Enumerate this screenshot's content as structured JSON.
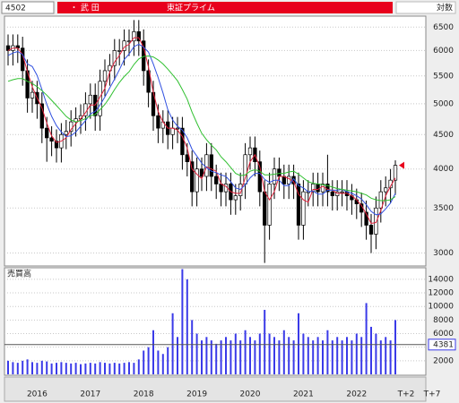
{
  "header": {
    "code": "4502",
    "name": "・ 武 田",
    "market": "東証プライム",
    "scale_mode": "対数"
  },
  "x_extra_labels": [
    "T+2",
    "T+7"
  ],
  "chart_data": [
    {
      "type": "candlestick",
      "log_scale": true,
      "grid": true,
      "up_color": "#ffffff",
      "down_color": "#000000",
      "marker_color": "#e8001c",
      "categories": [
        null,
        null,
        null,
        null,
        null,
        null,
        "2016",
        null,
        null,
        null,
        null,
        null,
        null,
        null,
        null,
        null,
        null,
        "2017",
        null,
        null,
        null,
        null,
        null,
        null,
        null,
        null,
        null,
        null,
        "2018",
        null,
        null,
        null,
        null,
        null,
        null,
        null,
        null,
        null,
        null,
        "2019",
        null,
        null,
        null,
        null,
        null,
        null,
        null,
        null,
        null,
        null,
        "2020",
        null,
        null,
        null,
        null,
        null,
        null,
        null,
        null,
        null,
        null,
        "2021",
        null,
        null,
        null,
        null,
        null,
        null,
        null,
        null,
        null,
        null,
        "2022",
        null,
        null,
        null,
        null,
        null,
        null,
        null,
        null
      ],
      "open": [
        6100,
        6000,
        6100,
        6050,
        5600,
        5100,
        5200,
        5000,
        4600,
        4450,
        4400,
        4300,
        4500,
        4550,
        4700,
        4750,
        4800,
        5000,
        5150,
        4800,
        5400,
        5600,
        5700,
        6000,
        6000,
        6200,
        6200,
        6400,
        6200,
        5600,
        5200,
        4800,
        4600,
        4700,
        4500,
        4600,
        4600,
        4200,
        4100,
        3700,
        4000,
        3900,
        4200,
        3900,
        3800,
        3700,
        3800,
        3600,
        3650,
        3800,
        4200,
        4300,
        4100,
        3700,
        3300,
        3800,
        4000,
        3900,
        3800,
        3900,
        3800,
        3300,
        3700,
        3700,
        3800,
        3700,
        3800,
        3700,
        3650,
        3700,
        3700,
        3650,
        3600,
        3550,
        3450,
        3300,
        3200,
        3500,
        3700,
        3750,
        3850
      ],
      "high": [
        6340,
        6340,
        6340,
        6290,
        5820,
        5410,
        5410,
        5200,
        4780,
        4630,
        4580,
        4680,
        4730,
        4890,
        4940,
        4990,
        5200,
        5360,
        5360,
        5620,
        5820,
        5930,
        6240,
        6240,
        6450,
        6450,
        6660,
        6660,
        6450,
        5820,
        5410,
        4990,
        4890,
        4890,
        4780,
        4780,
        4780,
        4370,
        4260,
        4160,
        4160,
        4370,
        4370,
        4060,
        3950,
        3950,
        3950,
        3800,
        3950,
        4370,
        4470,
        4470,
        4260,
        3850,
        3950,
        4160,
        4160,
        4060,
        4060,
        4060,
        3950,
        3850,
        3850,
        3950,
        3950,
        3950,
        4200,
        3850,
        3850,
        3850,
        3850,
        3800,
        3740,
        3690,
        3590,
        3430,
        3640,
        3850,
        3900,
        4000,
        4120
      ],
      "low": [
        5700,
        5700,
        5750,
        5320,
        4850,
        4850,
        4750,
        4370,
        4100,
        4180,
        4090,
        4090,
        4280,
        4320,
        4470,
        4510,
        4560,
        4750,
        4560,
        4560,
        5130,
        5320,
        5420,
        5700,
        5700,
        5890,
        5890,
        5890,
        5320,
        4940,
        4560,
        4370,
        4370,
        4280,
        4280,
        4370,
        3990,
        3900,
        3520,
        3520,
        3710,
        3710,
        3710,
        3610,
        3520,
        3520,
        3420,
        3420,
        3470,
        3610,
        3990,
        3900,
        3520,
        2900,
        3140,
        3610,
        3710,
        3610,
        3610,
        3610,
        3140,
        3140,
        3520,
        3520,
        3520,
        3520,
        3520,
        3470,
        3470,
        3520,
        3470,
        3420,
        3370,
        3280,
        3140,
        3000,
        3040,
        3330,
        3520,
        3560,
        3660
      ],
      "close": [
        6000,
        6100,
        6050,
        5600,
        5100,
        5200,
        5000,
        4600,
        4450,
        4400,
        4300,
        4500,
        4550,
        4700,
        4750,
        4800,
        5000,
        5150,
        4800,
        5400,
        5600,
        5700,
        6000,
        6000,
        6200,
        6200,
        6400,
        6200,
        5600,
        5200,
        4800,
        4600,
        4700,
        4500,
        4600,
        4600,
        4200,
        4100,
        3700,
        4000,
        3900,
        4200,
        3900,
        3800,
        3700,
        3800,
        3600,
        3650,
        3800,
        4200,
        4300,
        4100,
        3700,
        3300,
        3800,
        4000,
        3900,
        3800,
        3900,
        3800,
        3300,
        3700,
        3700,
        3800,
        3700,
        3800,
        3700,
        3650,
        3700,
        3700,
        3650,
        3600,
        3550,
        3450,
        3300,
        3200,
        3500,
        3700,
        3750,
        3850,
        4050
      ],
      "series": [
        {
          "color": "#e0203a",
          "values": [
            6000,
            6050,
            6050,
            5920,
            5580,
            5300,
            5100,
            4930,
            4680,
            4480,
            4380,
            4400,
            4450,
            4580,
            4670,
            4750,
            4850,
            4980,
            4980,
            5120,
            5270,
            5570,
            5770,
            5900,
            6070,
            6130,
            6270,
            6270,
            6070,
            5670,
            5200,
            4870,
            4700,
            4600,
            4600,
            4570,
            4470,
            4300,
            4000,
            3930,
            3870,
            4030,
            4000,
            3970,
            3800,
            3770,
            3700,
            3680,
            3680,
            3880,
            4100,
            4200,
            4030,
            3700,
            3600,
            3700,
            3900,
            3900,
            3870,
            3830,
            3670,
            3600,
            3570,
            3730,
            3730,
            3770,
            3730,
            3720,
            3680,
            3680,
            3680,
            3650,
            3600,
            3530,
            3430,
            3320,
            3330,
            3470,
            3650,
            3770,
            3880
          ]
        },
        {
          "color": "#3050e0",
          "values": [
            5900,
            5950,
            5980,
            5920,
            5730,
            5680,
            5510,
            5250,
            4990,
            4790,
            4640,
            4540,
            4470,
            4480,
            4540,
            4630,
            4720,
            4830,
            4870,
            4980,
            5120,
            5280,
            5440,
            5620,
            5820,
            5930,
            6080,
            6130,
            6070,
            5970,
            5730,
            5470,
            5190,
            4900,
            4730,
            4630,
            4570,
            4450,
            4280,
            4180,
            4080,
            4020,
            3970,
            3950,
            3920,
            3900,
            3830,
            3750,
            3730,
            3790,
            3880,
            3940,
            3940,
            3860,
            3820,
            3850,
            3850,
            3780,
            3780,
            3870,
            3780,
            3750,
            3700,
            3710,
            3670,
            3670,
            3720,
            3720,
            3720,
            3730,
            3700,
            3680,
            3650,
            3610,
            3540,
            3460,
            3420,
            3430,
            3490,
            3560,
            3680
          ]
        },
        {
          "color": "#30c030",
          "values": [
            5400,
            5430,
            5450,
            5450,
            5400,
            5360,
            5300,
            5230,
            5150,
            5060,
            4970,
            4880,
            4790,
            4730,
            4700,
            4720,
            4750,
            4800,
            4820,
            4900,
            4990,
            5110,
            5250,
            5380,
            5490,
            5580,
            5720,
            5830,
            5880,
            5890,
            5870,
            5810,
            5730,
            5630,
            5520,
            5410,
            5250,
            5080,
            4860,
            4680,
            4520,
            4420,
            4340,
            4270,
            4170,
            4100,
            4020,
            3940,
            3910,
            3920,
            3970,
            3990,
            3970,
            3920,
            3920,
            3930,
            3940,
            3940,
            3960,
            3970,
            3930,
            3880,
            3830,
            3810,
            3800,
            3790,
            3780,
            3760,
            3740,
            3730,
            3720,
            3710,
            3700,
            3680,
            3660,
            3620,
            3600,
            3590,
            3590,
            3600,
            3640
          ]
        }
      ],
      "ylim": [
        2870,
        6750
      ],
      "yticks": [
        3000,
        3500,
        4000,
        4500,
        5000,
        5500,
        6000,
        6500
      ]
    },
    {
      "type": "bar",
      "title": "売買高",
      "color": "#3a3ae8",
      "grid": true,
      "values": [
        2000,
        1800,
        1700,
        2000,
        2200,
        1800,
        1700,
        2000,
        1900,
        1600,
        1700,
        1800,
        1700,
        1600,
        1700,
        1500,
        1600,
        1700,
        1600,
        1800,
        1700,
        1600,
        1700,
        1600,
        1700,
        1800,
        1700,
        2200,
        3500,
        4000,
        6500,
        3500,
        3000,
        4000,
        9000,
        5500,
        15500,
        14000,
        8000,
        6000,
        5000,
        5500,
        5000,
        4500,
        5000,
        5500,
        5000,
        6000,
        5000,
        6500,
        5500,
        5000,
        6000,
        9500,
        6000,
        5500,
        5000,
        6500,
        5500,
        5000,
        9000,
        6000,
        5500,
        5000,
        5500,
        5000,
        6500,
        5000,
        5500,
        5000,
        5500,
        5000,
        6000,
        5500,
        10500,
        7000,
        6000,
        5000,
        5500,
        5000,
        8000
      ],
      "current_value": 4381,
      "ylim": [
        0,
        15700
      ],
      "yticks": [
        2000,
        4000,
        6000,
        8000,
        10000,
        12000,
        14000
      ]
    }
  ]
}
